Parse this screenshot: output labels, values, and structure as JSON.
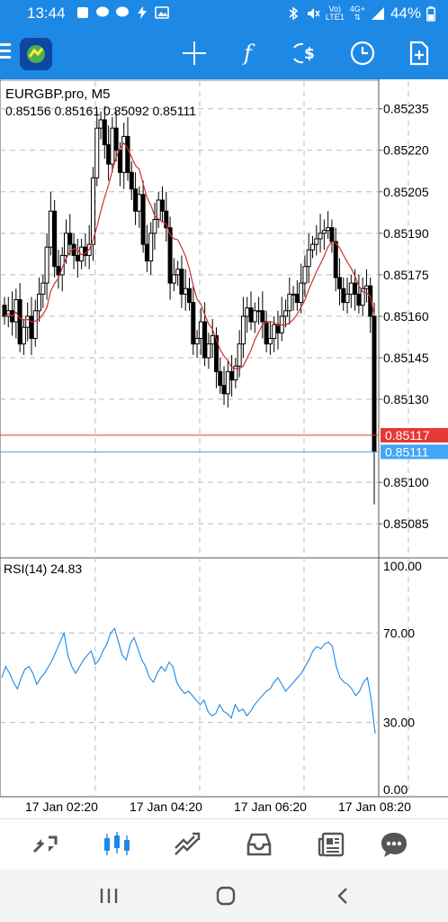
{
  "status_bar": {
    "time": "13:44",
    "battery": "44%",
    "network_top": "Vo)",
    "network_bottom": "LTE1",
    "net_type": "4G+"
  },
  "toolbar": {
    "icons": [
      "menu-icon",
      "app-logo-icon",
      "crosshair-icon",
      "indicators-icon",
      "timeframe-icon",
      "clock-icon",
      "new-order-icon"
    ]
  },
  "chart_data": [
    {
      "type": "candlestick",
      "title": "EURGBP.pro, M5",
      "ohlc_readout": "0.85156 0.85161 0.85092 0.85111",
      "ylim": [
        0.85073,
        0.85245
      ],
      "yticks": [
        "0.85235",
        "0.85220",
        "0.85205",
        "0.85190",
        "0.85175",
        "0.85160",
        "0.85145",
        "0.85130",
        "0.85100",
        "0.85085"
      ],
      "price_labels": [
        {
          "value": "0.85117",
          "color": "#e53935"
        },
        {
          "value": "0.85111",
          "color": "#42a5f5"
        }
      ],
      "xticks": [
        "17 Jan 02:20",
        "17 Jan 04:20",
        "17 Jan 06:20",
        "17 Jan 08:20"
      ],
      "closes": [
        0.8516,
        0.85162,
        0.85158,
        0.85166,
        0.8515,
        0.85156,
        0.8516,
        0.85152,
        0.85162,
        0.85168,
        0.85172,
        0.85185,
        0.85198,
        0.85178,
        0.85175,
        0.85182,
        0.8519,
        0.85186,
        0.85182,
        0.8518,
        0.85185,
        0.85182,
        0.85186,
        0.8521,
        0.85228,
        0.85231,
        0.85222,
        0.85215,
        0.85228,
        0.8522,
        0.85212,
        0.85225,
        0.85212,
        0.85206,
        0.85198,
        0.85204,
        0.85186,
        0.8518,
        0.8519,
        0.85195,
        0.85202,
        0.85198,
        0.85192,
        0.85172,
        0.85175,
        0.85177,
        0.85168,
        0.8517,
        0.85165,
        0.8515,
        0.85152,
        0.85158,
        0.85145,
        0.8515,
        0.85153,
        0.8514,
        0.85135,
        0.85132,
        0.8514,
        0.85137,
        0.85142,
        0.8515,
        0.8516,
        0.85163,
        0.85158,
        0.85162,
        0.85162,
        0.85158,
        0.8515,
        0.85152,
        0.85157,
        0.85154,
        0.8516,
        0.85162,
        0.85168,
        0.85168,
        0.85165,
        0.85172,
        0.85178,
        0.85184,
        0.85186,
        0.85188,
        0.8519,
        0.85191,
        0.85192,
        0.85187,
        0.85174,
        0.8517,
        0.85165,
        0.85168,
        0.85172,
        0.85168,
        0.85164,
        0.8517,
        0.85171,
        0.8516,
        0.85111
      ],
      "ma_color": "#d32f2f"
    },
    {
      "type": "line",
      "title": "RSI(14) 24.83",
      "ylim": [
        0,
        100
      ],
      "yticks": [
        "100.00",
        "70.00",
        "30.00",
        "0.00"
      ],
      "values": [
        50,
        55,
        52,
        48,
        45,
        50,
        54,
        55,
        52,
        47,
        50,
        52,
        55,
        58,
        62,
        66,
        70,
        60,
        55,
        52,
        55,
        58,
        60,
        62,
        56,
        58,
        62,
        65,
        70,
        72,
        66,
        60,
        58,
        65,
        68,
        63,
        58,
        55,
        50,
        48,
        52,
        55,
        53,
        57,
        55,
        48,
        45,
        43,
        44,
        42,
        40,
        38,
        40,
        35,
        33,
        34,
        38,
        35,
        34,
        32,
        38,
        35,
        36,
        33,
        35,
        38,
        40,
        42,
        44,
        45,
        48,
        50,
        47,
        44,
        46,
        48,
        50,
        52,
        55,
        58,
        62,
        64,
        63,
        65,
        66,
        64,
        55,
        50,
        48,
        47,
        45,
        42,
        44,
        48,
        50,
        40,
        25
      ],
      "color": "#1e88e5"
    }
  ],
  "bottom_nav": {
    "items": [
      "quotes-icon",
      "chart-icon",
      "trade-icon",
      "history-icon",
      "news-icon",
      "chat-icon"
    ]
  },
  "system_nav": {
    "items": [
      "recents-icon",
      "home-icon",
      "back-icon"
    ]
  }
}
